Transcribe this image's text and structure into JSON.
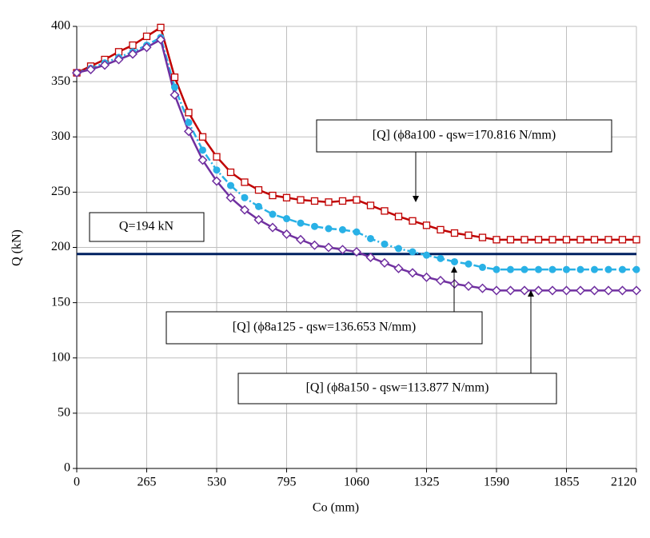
{
  "chart_data": {
    "type": "line",
    "xlabel": "Co (mm)",
    "ylabel": "Q (kN)",
    "x": [
      0,
      53,
      106,
      159,
      212,
      265,
      318,
      371,
      424,
      477,
      530,
      583,
      636,
      689,
      742,
      795,
      848,
      901,
      954,
      1007,
      1060,
      1113,
      1166,
      1219,
      1272,
      1325,
      1378,
      1431,
      1484,
      1537,
      1590,
      1643,
      1696,
      1749,
      1802,
      1855,
      1908,
      1961,
      2014,
      2067,
      2120
    ],
    "series": [
      {
        "name": "[Q] (ϕ8a100 - qsw=170.816 N/mm)",
        "color": "#c00000",
        "marker": "square",
        "values": [
          358,
          364,
          370,
          377,
          383,
          391,
          399,
          354,
          322,
          300,
          282,
          268,
          259,
          252,
          247,
          245,
          243,
          242,
          241,
          242,
          243,
          238,
          233,
          228,
          224,
          220,
          216,
          213,
          211,
          209,
          207,
          207,
          207,
          207,
          207,
          207,
          207,
          207,
          207,
          207,
          207
        ]
      },
      {
        "name": "[Q] (ϕ8a125 - qsw=136.653 N/mm)",
        "color": "#29b1e6",
        "marker": "circle",
        "values": [
          358,
          362,
          367,
          372,
          377,
          383,
          390,
          345,
          313,
          288,
          270,
          256,
          245,
          237,
          230,
          226,
          222,
          219,
          217,
          216,
          214,
          208,
          203,
          199,
          196,
          193,
          190,
          187,
          185,
          182,
          180,
          180,
          180,
          180,
          180,
          180,
          180,
          180,
          180,
          180,
          180
        ]
      },
      {
        "name": "[Q] (ϕ8a150 - qsw=113.877 N/mm)",
        "color": "#7030a0",
        "marker": "diamond",
        "values": [
          358,
          361,
          365,
          370,
          375,
          381,
          388,
          338,
          305,
          279,
          260,
          245,
          234,
          225,
          218,
          212,
          207,
          202,
          200,
          198,
          196,
          191,
          186,
          181,
          177,
          173,
          170,
          167,
          165,
          163,
          161,
          161,
          161,
          161,
          161,
          161,
          161,
          161,
          161,
          161,
          161
        ]
      }
    ],
    "reference_line": {
      "value": 194,
      "label": "Q=194 kN",
      "color": "#002060"
    },
    "xlim": [
      0,
      2120
    ],
    "xticks": [
      0,
      265,
      530,
      795,
      1060,
      1325,
      1590,
      1855,
      2120
    ],
    "ylim": [
      0,
      400
    ],
    "yticks": [
      0,
      50,
      100,
      150,
      200,
      250,
      300,
      350,
      400
    ],
    "grid": true
  }
}
